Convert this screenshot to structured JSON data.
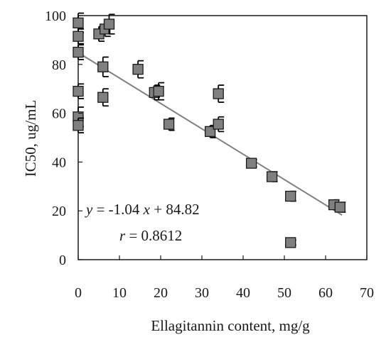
{
  "chart_data": {
    "type": "scatter",
    "xlabel": "Ellagitannin content, mg/g",
    "ylabel": "IC50, ug/mL",
    "xlim": [
      0,
      70
    ],
    "ylim": [
      0,
      100
    ],
    "x_ticks": [
      "0",
      "10",
      "20",
      "30",
      "40",
      "50",
      "60",
      "70"
    ],
    "y_ticks": [
      "0",
      "20",
      "40",
      "60",
      "80",
      "100"
    ],
    "grid": false,
    "legend": "none",
    "marker_color": "#808080",
    "line_color": "#808080",
    "points": [
      {
        "x": 0,
        "y": 97,
        "err": 4
      },
      {
        "x": 0,
        "y": 91.5,
        "err": 3
      },
      {
        "x": 0,
        "y": 85,
        "err": 3
      },
      {
        "x": 0,
        "y": 69,
        "err": 3
      },
      {
        "x": 0,
        "y": 58.5,
        "err": 4
      },
      {
        "x": 0,
        "y": 55,
        "err": 3
      },
      {
        "x": 5,
        "y": 92.5,
        "err": 3
      },
      {
        "x": 6.5,
        "y": 94.5,
        "err": 3
      },
      {
        "x": 7.5,
        "y": 96.5,
        "err": 4
      },
      {
        "x": 6,
        "y": 79,
        "err": 4
      },
      {
        "x": 6,
        "y": 66.5,
        "err": 3.5
      },
      {
        "x": 14.5,
        "y": 78,
        "err": 3.5
      },
      {
        "x": 18.5,
        "y": 68.5,
        "err": 3
      },
      {
        "x": 19.5,
        "y": 69,
        "err": 3.5
      },
      {
        "x": 22,
        "y": 55.5,
        "err": 2.5
      },
      {
        "x": 32,
        "y": 52.5,
        "err": 2.5
      },
      {
        "x": 34,
        "y": 55.5,
        "err": 3
      },
      {
        "x": 34,
        "y": 68,
        "err": 3.5
      },
      {
        "x": 42,
        "y": 39.5,
        "err": 1.5
      },
      {
        "x": 47,
        "y": 34,
        "err": 2
      },
      {
        "x": 51.5,
        "y": 26,
        "err": 2
      },
      {
        "x": 51.5,
        "y": 7,
        "err": 1
      },
      {
        "x": 62,
        "y": 22.5,
        "err": 2
      },
      {
        "x": 63.5,
        "y": 21.5,
        "err": 2
      }
    ],
    "trendline": {
      "slope": -1.04,
      "intercept": 84.82,
      "x_range": [
        0,
        64
      ]
    },
    "annotation": {
      "eq_y": "y",
      "eq_mid": " = -1.04 ",
      "eq_x": "x",
      "eq_end": " + 84.82",
      "r_var": "r",
      "r_rest": " = 0.8612"
    }
  }
}
